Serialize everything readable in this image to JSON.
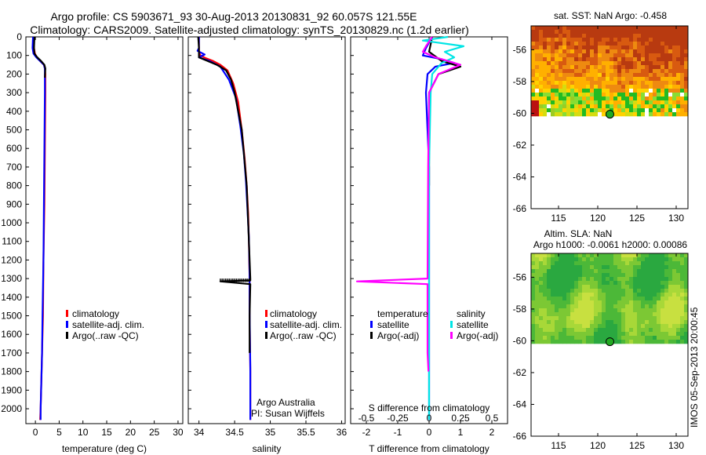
{
  "title": {
    "line1": "Argo profile: CS 5903671_93 30-Aug-2013 20130831_92 60.057S 121.55E",
    "line2": "Climatology: CARS2009. Satellite-adjusted climatology: synTS_20130829.nc (1.2d earlier)"
  },
  "footer": "IMOS 05-Sep-2013 20:00:45",
  "colors": {
    "climatology": "#ff0000",
    "satellite": "#0000ff",
    "argo": "#000000",
    "sal_satellite": "#00e5e5",
    "sal_argo": "#ff00ff"
  },
  "chart_data": [
    {
      "type": "line",
      "name": "temperature",
      "xlabel": "temperature (deg C)",
      "ylabel": "",
      "xlim": [
        -2,
        31
      ],
      "ylim": [
        2080,
        0
      ],
      "xticks": [
        "0",
        "5",
        "10",
        "15",
        "20",
        "25",
        "30"
      ],
      "xtick_values": [
        0,
        5,
        10,
        15,
        20,
        25,
        30
      ],
      "yticks": [
        "0",
        "100",
        "200",
        "300",
        "400",
        "500",
        "600",
        "700",
        "800",
        "900",
        "1000",
        "1100",
        "1200",
        "1300",
        "1400",
        "1500",
        "1600",
        "1700",
        "1800",
        "1900",
        "2000"
      ],
      "ytick_values": [
        0,
        100,
        200,
        300,
        400,
        500,
        600,
        700,
        800,
        900,
        1000,
        1100,
        1200,
        1300,
        1400,
        1500,
        1600,
        1700,
        1800,
        1900,
        2000
      ],
      "legend": [
        "climatology",
        "satellite-adj. clim.",
        "Argo(..raw -QC)"
      ],
      "series": [
        {
          "name": "climatology",
          "color": "#ff0000",
          "x": [
            -0.3,
            -0.3,
            -0.1,
            0.3,
            1.0,
            1.8,
            2.0,
            2.1,
            2.1,
            2.0,
            1.9,
            1.7,
            1.6,
            1.4,
            1.2,
            1.1,
            1.0
          ],
          "y": [
            0,
            60,
            90,
            110,
            130,
            150,
            170,
            200,
            300,
            600,
            900,
            1200,
            1500,
            1700,
            1900,
            2000,
            2060
          ]
        },
        {
          "name": "satellite-adj. clim.",
          "color": "#0000ff",
          "x": [
            -0.5,
            -0.6,
            -0.4,
            0.2,
            1.0,
            1.8,
            2.0,
            2.0,
            2.0,
            1.9,
            1.8,
            1.7,
            1.5,
            1.4,
            1.2,
            1.1,
            1.1
          ],
          "y": [
            0,
            60,
            90,
            110,
            130,
            150,
            170,
            200,
            300,
            600,
            900,
            1200,
            1500,
            1700,
            1900,
            2000,
            2060
          ]
        },
        {
          "name": "Argo(..raw -QC)",
          "color": "#000000",
          "x": [
            -0.2,
            -0.3,
            -0.2,
            0.4,
            1.2,
            1.9,
            2.1,
            2.0
          ],
          "y": [
            0,
            60,
            90,
            110,
            130,
            150,
            170,
            220
          ]
        }
      ]
    },
    {
      "type": "line",
      "name": "salinity",
      "xlabel": "salinity",
      "xlim": [
        33.85,
        36.05
      ],
      "ylim": [
        2080,
        0
      ],
      "xticks": [
        "34",
        "34.5",
        "35",
        "35.5",
        "36"
      ],
      "xtick_values": [
        34,
        34.5,
        35,
        35.5,
        36
      ],
      "legend": [
        "climatology",
        "satellite-adj. clim.",
        "Argo(..raw -QC)"
      ],
      "annotation": [
        "Argo Australia",
        "PI: Susan Wijffels"
      ],
      "series": [
        {
          "name": "climatology",
          "color": "#ff0000",
          "x": [
            34.0,
            34.0,
            34.02,
            34.1,
            34.2,
            34.3,
            34.4,
            34.48,
            34.55,
            34.6,
            34.64,
            34.67,
            34.69,
            34.7,
            34.71,
            34.71,
            34.72,
            34.72
          ],
          "y": [
            0,
            80,
            100,
            115,
            130,
            150,
            180,
            250,
            350,
            500,
            650,
            800,
            950,
            1100,
            1300,
            1500,
            1800,
            2060
          ]
        },
        {
          "name": "satellite-adj. clim.",
          "color": "#0000ff",
          "x": [
            34.0,
            34.0,
            33.98,
            34.08,
            34.0,
            34.15,
            34.3,
            34.42,
            34.52,
            34.58,
            34.63,
            34.66,
            34.68,
            34.7,
            34.71,
            34.71,
            34.72,
            34.72
          ],
          "y": [
            0,
            60,
            75,
            95,
            110,
            130,
            160,
            230,
            330,
            480,
            630,
            780,
            930,
            1080,
            1280,
            1480,
            1780,
            2060
          ]
        },
        {
          "name": "Argo(..raw -QC)",
          "color": "#000000",
          "x": [
            33.99,
            34.0,
            34.0,
            34.25,
            34.38,
            34.45,
            34.5,
            34.6,
            34.67,
            34.7,
            34.72,
            34.72,
            34.3,
            34.72,
            34.71,
            34.71
          ],
          "y": [
            0,
            60,
            110,
            150,
            180,
            230,
            300,
            500,
            800,
            1100,
            1300,
            1310,
            1315,
            1330,
            1500,
            1700
          ]
        }
      ]
    },
    {
      "type": "line",
      "name": "differences",
      "xlabel": "T difference from climatology",
      "xlabel2": "S difference from climatology",
      "xlim": [
        -2.5,
        2.5
      ],
      "ylim": [
        2080,
        0
      ],
      "xticks": [
        "-2",
        "-1",
        "0",
        "1",
        "2"
      ],
      "xtick_values": [
        -2,
        -1,
        0,
        1,
        2
      ],
      "xticks_top": [
        "-0.5",
        "-0.25",
        "0",
        "0.25",
        "0.5"
      ],
      "legend_temperature_header": "temperature",
      "legend_salinity_header": "salinity",
      "legend": [
        "satellite",
        "Argo(-adj)",
        "satellite",
        "Argo(-adj)"
      ],
      "series": [
        {
          "name": "T satellite",
          "color": "#0000ff",
          "x": [
            0.1,
            -0.1,
            -0.2,
            0.4,
            0.8,
            0.2,
            -0.05,
            -0.1,
            0.0,
            0.0,
            0.0
          ],
          "y": [
            0,
            60,
            100,
            120,
            140,
            160,
            200,
            300,
            700,
            1500,
            2060
          ]
        },
        {
          "name": "T Argo(-adj)",
          "color": "#000000",
          "x": [
            0.1,
            0.0,
            0.4,
            1.0,
            0.3,
            0.0,
            0.0
          ],
          "y": [
            0,
            80,
            130,
            160,
            200,
            300,
            800
          ]
        },
        {
          "name": "S satellite",
          "color": "#00e5e5",
          "x": [
            0.6,
            -0.2,
            1.1,
            0.5,
            0.8,
            0.4,
            0.1,
            0.05,
            0.0,
            0.0,
            0.0
          ],
          "y": [
            0,
            20,
            50,
            80,
            110,
            140,
            200,
            300,
            700,
            1500,
            2060
          ]
        },
        {
          "name": "S Argo(-adj)",
          "color": "#ff00ff",
          "x": [
            0.1,
            -0.1,
            -0.2,
            0.2,
            0.6,
            1.0,
            0.3,
            0.0,
            -0.03,
            -0.05,
            -2.3,
            -0.05,
            -0.05,
            -0.02
          ],
          "y": [
            0,
            50,
            80,
            110,
            130,
            150,
            200,
            300,
            700,
            1300,
            1315,
            1330,
            1700,
            1800
          ]
        }
      ]
    }
  ],
  "maps": [
    {
      "title": "sat. SST: NaN Argo: -0.458",
      "title2": "",
      "xticks": [
        "115",
        "120",
        "125",
        "130"
      ],
      "yticks": [
        "-56",
        "-58",
        "-60",
        "-62",
        "-64",
        "-66"
      ],
      "marker": {
        "lon": 121.55,
        "lat": -60.057
      }
    },
    {
      "title": "Altim. SLA: NaN",
      "title2": "Argo h1000: -0.0061 h2000: 0.00086",
      "xticks": [
        "115",
        "120",
        "125",
        "130"
      ],
      "yticks": [
        "-56",
        "-58",
        "-60",
        "-62",
        "-64",
        "-66"
      ],
      "marker": {
        "lon": 121.55,
        "lat": -60.057
      }
    }
  ]
}
